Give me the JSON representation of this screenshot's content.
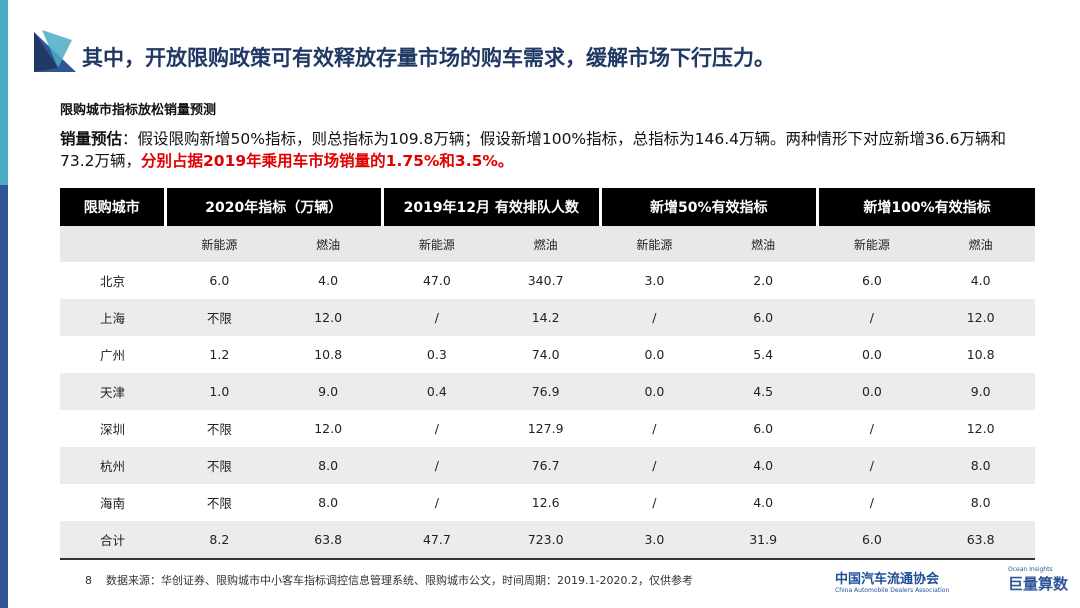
{
  "header": {
    "title": "其中，开放限购政策可有效释放存量市场的购车需求，缓解市场下行压力。",
    "subtitle": "限购城市指标放松销量预测"
  },
  "paragraph": {
    "label": "销量预估",
    "text": "：假设限购新增50%指标，则总指标为109.8万辆；假设新增100%指标，总指标为146.4万辆。两种情形下对应新增36.6万辆和73.2万辆，",
    "highlight": "分别占据2019年乘用车市场销量的1.75%和3.5%。"
  },
  "table": {
    "header": [
      "限购城市",
      "2020年指标（万辆）",
      "2019年12月 有效排队人数",
      "新增50%有效指标",
      "新增100%有效指标"
    ],
    "subheader": [
      "新能源",
      "燃油",
      "新能源",
      "燃油",
      "新能源",
      "燃油",
      "新能源",
      "燃油"
    ],
    "rows": [
      [
        "北京",
        "6.0",
        "4.0",
        "47.0",
        "340.7",
        "3.0",
        "2.0",
        "6.0",
        "4.0"
      ],
      [
        "上海",
        "不限",
        "12.0",
        "/",
        "14.2",
        "/",
        "6.0",
        "/",
        "12.0"
      ],
      [
        "广州",
        "1.2",
        "10.8",
        "0.3",
        "74.0",
        "0.0",
        "5.4",
        "0.0",
        "10.8"
      ],
      [
        "天津",
        "1.0",
        "9.0",
        "0.4",
        "76.9",
        "0.0",
        "4.5",
        "0.0",
        "9.0"
      ],
      [
        "深圳",
        "不限",
        "12.0",
        "/",
        "127.9",
        "/",
        "6.0",
        "/",
        "12.0"
      ],
      [
        "杭州",
        "不限",
        "8.0",
        "/",
        "76.7",
        "/",
        "4.0",
        "/",
        "8.0"
      ],
      [
        "海南",
        "不限",
        "8.0",
        "/",
        "12.6",
        "/",
        "4.0",
        "/",
        "8.0"
      ],
      [
        "合计",
        "8.2",
        "63.8",
        "47.7",
        "723.0",
        "3.0",
        "31.9",
        "6.0",
        "63.8"
      ]
    ]
  },
  "footer": {
    "page": "8",
    "source": "数据来源：华创证券、限购城市中小客车指标调控信息管理系统、限购城市公文，时间周期：2019.1-2020.2，仅供参考",
    "logo1": "中国汽车流通协会",
    "logo1_en": "China Automobile Dealers Association",
    "logo2": "巨量算数",
    "logo2_en": "Ocean Insights"
  }
}
